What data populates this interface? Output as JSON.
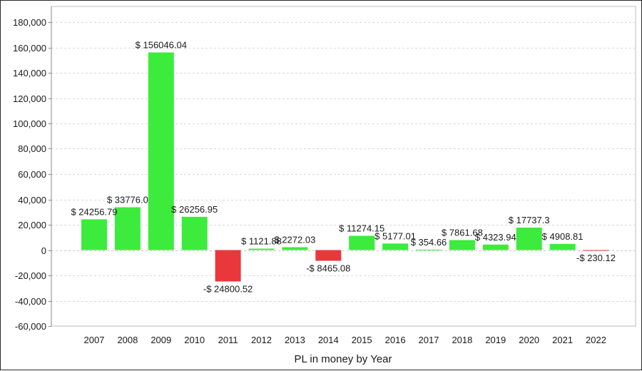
{
  "chart_data": {
    "type": "bar",
    "title": "",
    "xlabel": "PL in money by Year",
    "ylabel": "",
    "categories": [
      "2007",
      "2008",
      "2009",
      "2010",
      "2011",
      "2012",
      "2013",
      "2014",
      "2015",
      "2016",
      "2017",
      "2018",
      "2019",
      "2020",
      "2021",
      "2022"
    ],
    "values": [
      24256.79,
      33776.0,
      156046.04,
      26256.95,
      -24800.52,
      1121.88,
      2272.03,
      -8465.08,
      11274.15,
      5177.01,
      354.66,
      7861.68,
      4323.94,
      17737.3,
      4908.81,
      -230.12
    ],
    "value_labels": [
      "$ 24256.79",
      "$ 33776.0",
      "$ 156046.04",
      "$ 26256.95",
      "-$ 24800.52",
      "$ 1121.88",
      "$ 2272.03",
      "-$ 8465.08",
      "$ 11274.15",
      "$ 5177.01",
      "$ 354.66",
      "$ 7861.68",
      "$ 4323.94",
      "$ 17737.3",
      "$ 4908.81",
      "-$ 230.12"
    ],
    "ylim": [
      -60000,
      180000
    ],
    "y_ticks": [
      -60000,
      -40000,
      -20000,
      0,
      20000,
      40000,
      60000,
      80000,
      100000,
      120000,
      140000,
      160000,
      180000
    ],
    "y_tick_labels": [
      "-60,000",
      "-40,000",
      "-20,000",
      "0",
      "20,000",
      "40,000",
      "60,000",
      "80,000",
      "100,000",
      "120,000",
      "140,000",
      "160,000",
      "180,000"
    ],
    "grid": true,
    "colors": {
      "positive": "#3deb3d",
      "negative": "#e8383c",
      "grid": "#d8d8d8",
      "axis": "#888888"
    }
  }
}
